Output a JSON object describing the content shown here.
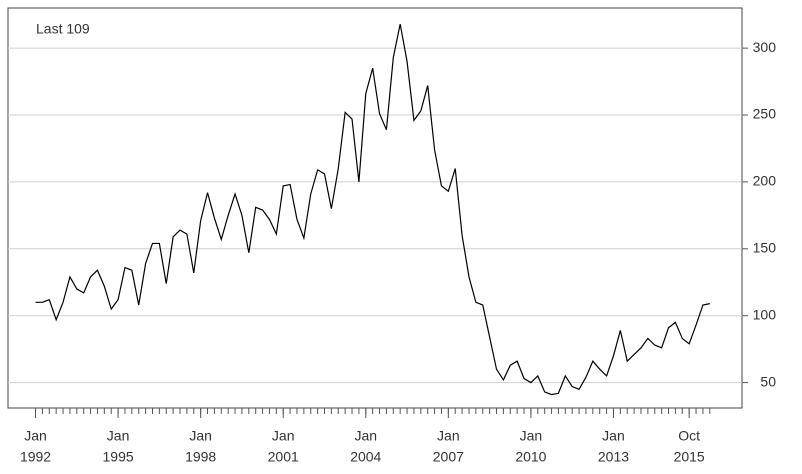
{
  "chart_data": {
    "type": "line",
    "legend_text": "Last 109",
    "x": [
      1992,
      1992.25,
      1992.5,
      1992.75,
      1993,
      1993.25,
      1993.5,
      1993.75,
      1994,
      1994.25,
      1994.5,
      1994.75,
      1995,
      1995.25,
      1995.5,
      1995.75,
      1996,
      1996.25,
      1996.5,
      1996.75,
      1997,
      1997.25,
      1997.5,
      1997.75,
      1998,
      1998.25,
      1998.5,
      1998.75,
      1999,
      1999.25,
      1999.5,
      1999.75,
      2000,
      2000.25,
      2000.5,
      2000.75,
      2001,
      2001.25,
      2001.5,
      2001.75,
      2002,
      2002.25,
      2002.5,
      2002.75,
      2003,
      2003.25,
      2003.5,
      2003.75,
      2004,
      2004.25,
      2004.5,
      2004.75,
      2005,
      2005.25,
      2005.5,
      2005.75,
      2006,
      2006.25,
      2006.5,
      2006.75,
      2007,
      2007.25,
      2007.5,
      2007.75,
      2008,
      2008.25,
      2008.5,
      2008.75,
      2009,
      2009.25,
      2009.5,
      2009.75,
      2010,
      2010.25,
      2010.5,
      2010.75,
      2011,
      2011.25,
      2011.5,
      2011.75,
      2012,
      2012.25,
      2012.5,
      2012.75,
      2013,
      2013.25,
      2013.5,
      2013.75,
      2014,
      2014.25,
      2014.5,
      2014.75,
      2015,
      2015.25,
      2015.5,
      2015.75,
      2016,
      2016.25,
      2016.5
    ],
    "series": [
      {
        "color": "#000000",
        "values": [
          110,
          110,
          112,
          97,
          110,
          129,
          120,
          117,
          129,
          134,
          122,
          105,
          112,
          136,
          134,
          108,
          139,
          154,
          154,
          124,
          159,
          164,
          161,
          132,
          171,
          192,
          173,
          157,
          175,
          191,
          175,
          147,
          181,
          179,
          172,
          161,
          197,
          198,
          172,
          158,
          191,
          209,
          206,
          180,
          210,
          252,
          247,
          200,
          266,
          285,
          251,
          239,
          293,
          318,
          290,
          246,
          253,
          272,
          224,
          197,
          193,
          210,
          160,
          129,
          110,
          108,
          84,
          60,
          52,
          63,
          66,
          53,
          50,
          55,
          43,
          41,
          42,
          55,
          47,
          45,
          54,
          66,
          60,
          55,
          70,
          89,
          66,
          71,
          76,
          83,
          78,
          76,
          91,
          95,
          83,
          79,
          93,
          108,
          109
        ]
      }
    ],
    "xlim": [
      1991,
      2017.67
    ],
    "ylim": [
      31,
      330
    ],
    "yticks": [
      50,
      100,
      150,
      200,
      250,
      300
    ],
    "xticks": [
      {
        "value": 1992,
        "label": [
          "Jan",
          "1992"
        ]
      },
      {
        "value": 1995,
        "label": [
          "Jan",
          "1995"
        ]
      },
      {
        "value": 1998,
        "label": [
          "Jan",
          "1998"
        ]
      },
      {
        "value": 2001,
        "label": [
          "Jan",
          "2001"
        ]
      },
      {
        "value": 2004,
        "label": [
          "Jan",
          "2004"
        ]
      },
      {
        "value": 2007,
        "label": [
          "Jan",
          "2007"
        ]
      },
      {
        "value": 2010,
        "label": [
          "Jan",
          "2010"
        ]
      },
      {
        "value": 2013,
        "label": [
          "Jan",
          "2013"
        ]
      },
      {
        "value": 2015.75,
        "label": [
          "Oct",
          "2015"
        ]
      }
    ],
    "grid": true
  }
}
